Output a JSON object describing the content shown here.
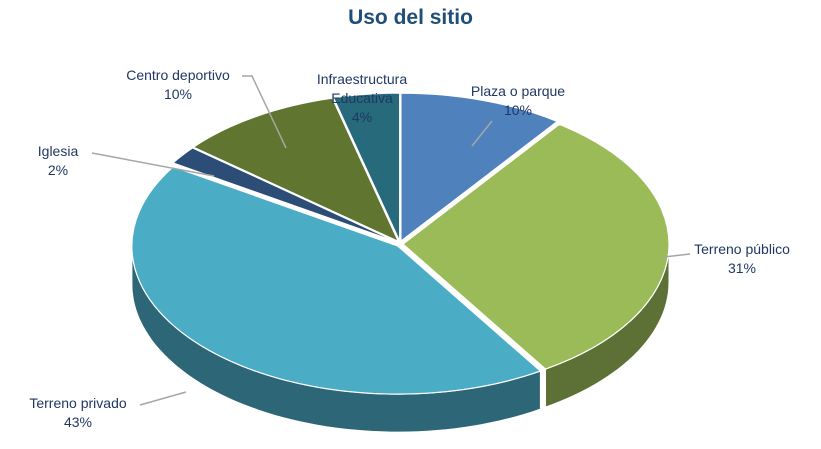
{
  "chart_data": {
    "type": "pie",
    "title": "Uso del sitio",
    "categories": [
      "Plaza o parque",
      "Terreno público",
      "Terreno privado",
      "Iglesia",
      "Centro deportivo",
      "Infraestructura Educativa"
    ],
    "values": [
      10,
      31,
      43,
      2,
      10,
      4
    ],
    "value_labels": [
      "10%",
      "31%",
      "43%",
      "2%",
      "10%",
      "4%"
    ],
    "colors": [
      "#4f81bd",
      "#9bbb59",
      "#4bacc6",
      "#2c4d75",
      "#5f7530",
      "#276a7c"
    ]
  }
}
